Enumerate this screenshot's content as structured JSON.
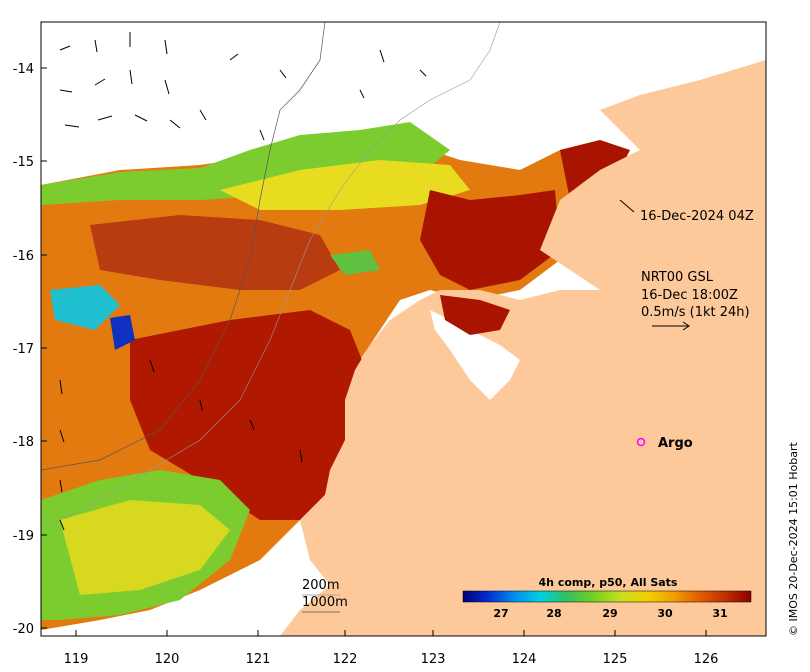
{
  "map": {
    "x_ticks": [
      "119",
      "120",
      "121",
      "122",
      "123",
      "124",
      "125",
      "126"
    ],
    "y_ticks": [
      "-14",
      "-15",
      "-16",
      "-17",
      "-18",
      "-19",
      "-20"
    ],
    "annotations": {
      "swath_time": "16-Dec-2024 04Z",
      "current_product": "NRT00 GSL",
      "current_time": "16-Dec 18:00Z",
      "current_scale": "0.5m/s (1kt 24h)",
      "argo": "Argo",
      "isobath_200": "200m",
      "isobath_1000": "1000m"
    },
    "colorbar": {
      "title": "4h comp, p50, All Sats",
      "ticks": [
        "27",
        "28",
        "29",
        "30",
        "31"
      ],
      "colors": [
        "#00007f",
        "#0030d0",
        "#0090f0",
        "#00d0e0",
        "#30c060",
        "#70d020",
        "#c8e020",
        "#f0d000",
        "#f0a000",
        "#e06000",
        "#c03000",
        "#8b0000"
      ]
    },
    "credit": "© IMOS 20-Dec-2024 15:01 Hobart",
    "colors": {
      "land": "#fdc89a",
      "warm": "#b01800",
      "argo_marker": "#ff00ff"
    }
  }
}
